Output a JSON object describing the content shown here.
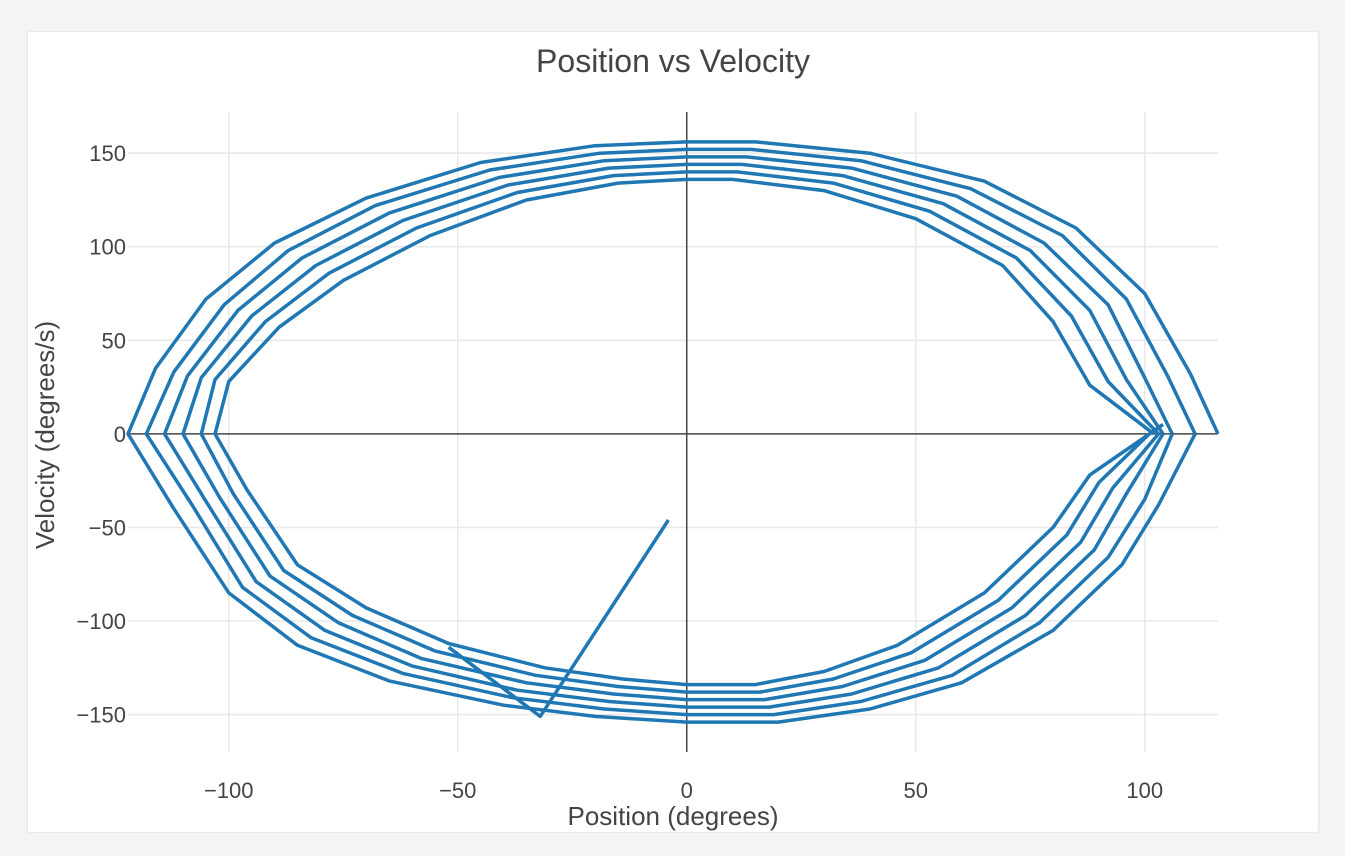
{
  "chart_data": {
    "type": "line",
    "title": "Position vs Velocity",
    "xlabel": "Position (degrees)",
    "ylabel": "Velocity (degrees/s)",
    "xlim": [
      -122,
      116
    ],
    "ylim": [
      -170,
      172
    ],
    "xticks": [
      -100,
      -50,
      0,
      50,
      100
    ],
    "yticks": [
      -150,
      -100,
      -50,
      0,
      50,
      100,
      150
    ],
    "xtick_labels": [
      "−100",
      "−50",
      "0",
      "50",
      "100"
    ],
    "ytick_labels": [
      "−150",
      "−100",
      "−50",
      "0",
      "50",
      "100",
      "150"
    ],
    "series": [
      {
        "name": "trajectory",
        "color": "#1f77b4",
        "x": [
          -4,
          -32,
          -52
        ],
        "y": [
          -46,
          -151,
          -114
        ]
      },
      {
        "name": "orbit-1",
        "color": "#1f77b4",
        "x": [
          116,
          110,
          100,
          85,
          65,
          40,
          15,
          0,
          -20,
          -45,
          -70,
          -90,
          -105,
          -116,
          -122,
          -112,
          -100,
          -85,
          -65,
          -40,
          -20,
          0,
          20,
          40,
          60,
          80,
          95,
          103,
          111
        ],
        "y": [
          0,
          32,
          75,
          110,
          135,
          150,
          156,
          156,
          154,
          145,
          126,
          102,
          72,
          35,
          0,
          -40,
          -85,
          -113,
          -132,
          -145,
          -151,
          -154,
          -154,
          -147,
          -133,
          -105,
          -70,
          -38,
          0
        ]
      },
      {
        "name": "orbit-2",
        "color": "#1f77b4",
        "x": [
          111,
          105,
          96,
          82,
          62,
          38,
          14,
          0,
          -19,
          -43,
          -68,
          -87,
          -101,
          -112,
          -118,
          -108,
          -97,
          -82,
          -62,
          -38,
          -18,
          0,
          19,
          38,
          58,
          77,
          92,
          100,
          106
        ],
        "y": [
          0,
          31,
          72,
          106,
          131,
          146,
          152,
          152,
          150,
          141,
          122,
          98,
          69,
          33,
          0,
          -38,
          -82,
          -109,
          -128,
          -141,
          -147,
          -150,
          -150,
          -143,
          -129,
          -101,
          -66,
          -35,
          0
        ]
      },
      {
        "name": "orbit-3",
        "color": "#1f77b4",
        "x": [
          106,
          100,
          92,
          78,
          59,
          36,
          13,
          0,
          -18,
          -41,
          -65,
          -84,
          -98,
          -109,
          -114,
          -105,
          -94,
          -79,
          -60,
          -37,
          -17,
          0,
          18,
          36,
          55,
          74,
          89,
          96,
          104
        ],
        "y": [
          0,
          30,
          69,
          102,
          127,
          142,
          148,
          148,
          146,
          137,
          118,
          94,
          66,
          31,
          0,
          -36,
          -79,
          -105,
          -124,
          -137,
          -143,
          -146,
          -146,
          -139,
          -125,
          -97,
          -62,
          -32,
          0
        ]
      },
      {
        "name": "orbit-4",
        "color": "#1f77b4",
        "x": [
          104,
          96,
          88,
          75,
          56,
          34,
          12,
          0,
          -17,
          -39,
          -62,
          -81,
          -95,
          -106,
          -110,
          -102,
          -91,
          -76,
          -58,
          -35,
          -16,
          0,
          17,
          34,
          52,
          71,
          86,
          93,
          103
        ],
        "y": [
          0,
          29,
          66,
          98,
          123,
          138,
          144,
          144,
          142,
          133,
          114,
          90,
          63,
          30,
          0,
          -34,
          -76,
          -101,
          -120,
          -133,
          -139,
          -142,
          -142,
          -135,
          -121,
          -93,
          -58,
          -29,
          0
        ]
      },
      {
        "name": "orbit-5",
        "color": "#1f77b4",
        "x": [
          103,
          92,
          84,
          72,
          53,
          32,
          11,
          0,
          -16,
          -37,
          -59,
          -78,
          -92,
          -103,
          -106,
          -99,
          -88,
          -73,
          -55,
          -33,
          -15,
          0,
          16,
          32,
          49,
          68,
          83,
          90,
          101
        ],
        "y": [
          0,
          28,
          63,
          94,
          119,
          134,
          140,
          140,
          138,
          129,
          110,
          86,
          60,
          29,
          0,
          -32,
          -73,
          -97,
          -116,
          -129,
          -135,
          -138,
          -138,
          -131,
          -117,
          -89,
          -54,
          -26,
          0
        ]
      },
      {
        "name": "orbit-6",
        "color": "#1f77b4",
        "x": [
          102,
          88,
          80,
          69,
          50,
          30,
          10,
          0,
          -15,
          -35,
          -56,
          -75,
          -89,
          -100,
          -103,
          -96,
          -85,
          -70,
          -52,
          -31,
          -14,
          0,
          15,
          30,
          46,
          65,
          80,
          88,
          104
        ],
        "y": [
          0,
          26,
          60,
          90,
          115,
          130,
          136,
          136,
          134,
          125,
          106,
          82,
          57,
          28,
          0,
          -30,
          -70,
          -93,
          -112,
          -125,
          -131,
          -134,
          -134,
          -127,
          -113,
          -85,
          -50,
          -22,
          5
        ]
      }
    ]
  }
}
